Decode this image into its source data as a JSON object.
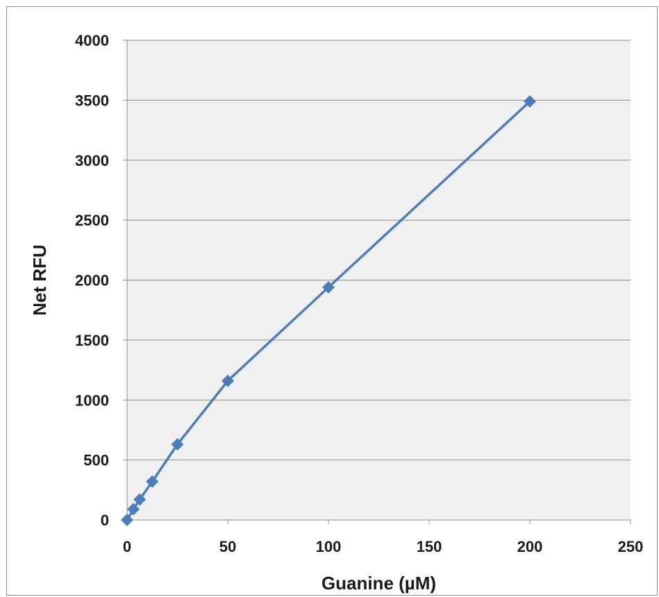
{
  "chart_data": {
    "type": "scatter",
    "title": "",
    "xlabel": "Guanine (µM)",
    "ylabel": "Net RFU",
    "xlim": [
      0,
      250
    ],
    "ylim": [
      0,
      4000
    ],
    "xticks": [
      0,
      50,
      100,
      150,
      200,
      250
    ],
    "yticks": [
      0,
      500,
      1000,
      1500,
      2000,
      2500,
      3000,
      3500,
      4000
    ],
    "grid": "horizontal",
    "lines_connecting_points": true,
    "marker": "diamond",
    "series": [
      {
        "color": "#4a7ebb",
        "x": [
          0,
          3.125,
          6.25,
          12.5,
          25,
          50,
          100,
          200
        ],
        "y": [
          0,
          90,
          170,
          320,
          630,
          1160,
          1940,
          3490
        ]
      }
    ],
    "plot_background": "#f0f0f0",
    "gridline_color": "#8c8c8c"
  }
}
